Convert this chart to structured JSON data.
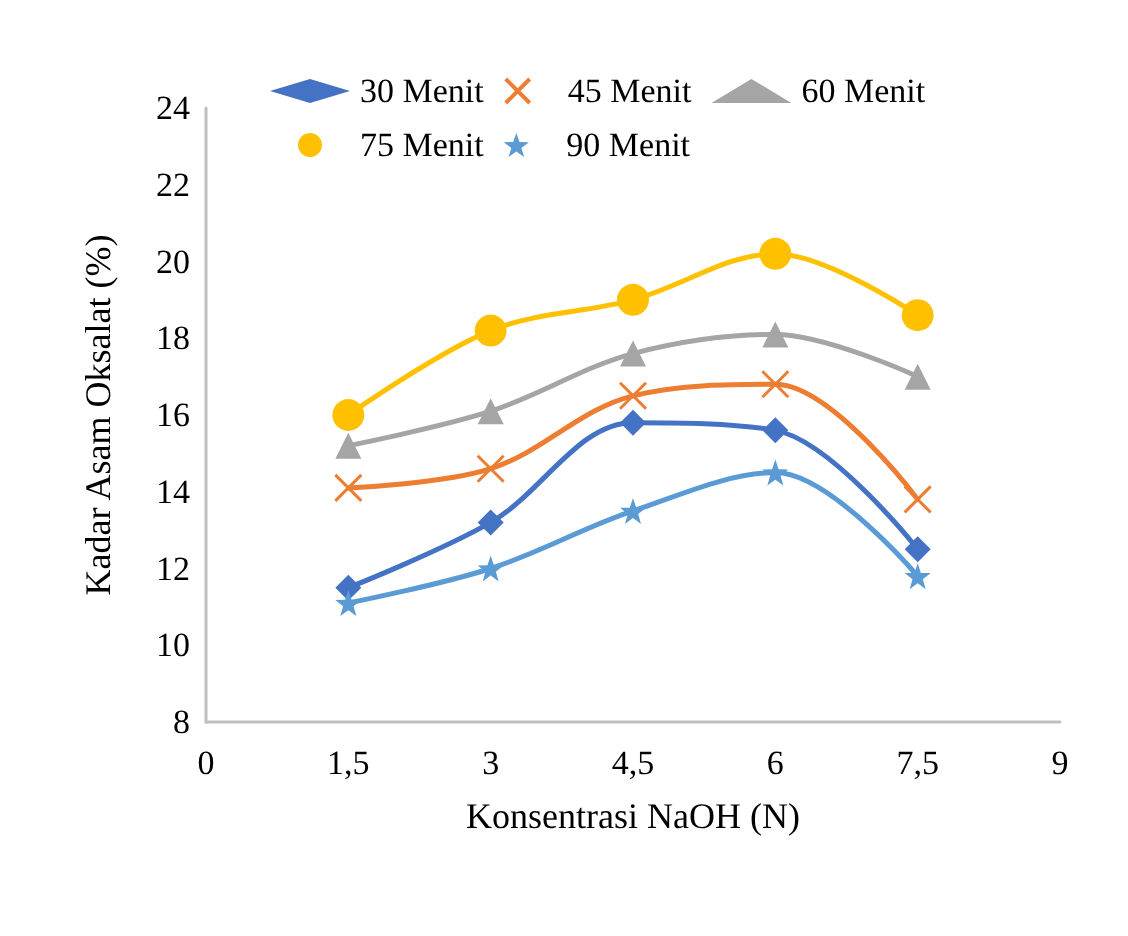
{
  "chart_data": {
    "type": "line",
    "xlabel": "Konsentrasi NaOH (N)",
    "ylabel": "Kadar Asam Oksalat (%)",
    "x": [
      1.5,
      3,
      4.5,
      6,
      7.5
    ],
    "xlim": [
      0,
      9
    ],
    "xticks": [
      0,
      {
        "value": 1.5,
        "label": "1,5"
      },
      3,
      {
        "value": 4.5,
        "label": "4,5"
      },
      6,
      {
        "value": 7.5,
        "label": "7,5"
      },
      9
    ],
    "ylim": [
      8,
      24
    ],
    "yticks": [
      8,
      10,
      12,
      14,
      16,
      18,
      20,
      22,
      24
    ],
    "grid": false,
    "legend": "top",
    "series": [
      {
        "name": "30 Menit",
        "color": "#4472c4",
        "marker": "diamond",
        "values": [
          11.5,
          13.2,
          15.8,
          15.6,
          12.5
        ]
      },
      {
        "name": "45 Menit",
        "color": "#ed7d31",
        "marker": "cross",
        "values": [
          14.1,
          14.6,
          16.5,
          16.8,
          13.8
        ]
      },
      {
        "name": "60 Menit",
        "color": "#a5a5a5",
        "marker": "triangle",
        "values": [
          15.2,
          16.1,
          17.6,
          18.1,
          17.0
        ]
      },
      {
        "name": "75 Menit",
        "color": "#ffc000",
        "marker": "circle",
        "values": [
          16.0,
          18.2,
          19.0,
          20.2,
          18.6
        ]
      },
      {
        "name": "90 Menit",
        "color": "#5b9bd5",
        "marker": "star",
        "values": [
          11.1,
          12.0,
          13.5,
          14.5,
          11.8
        ]
      }
    ]
  }
}
